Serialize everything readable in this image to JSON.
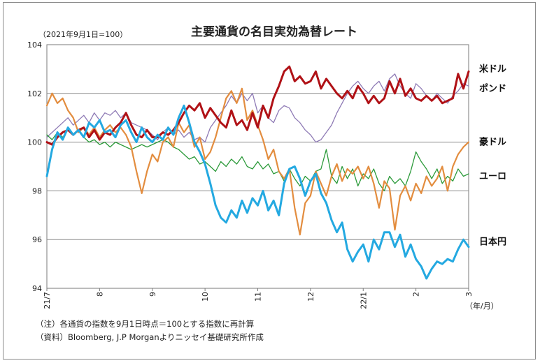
{
  "chart_data": {
    "type": "line",
    "title": "主要通貨の名目実効為替レート",
    "base_note": "（2021年9月1日=100）",
    "x_unit_label": "（年/月）",
    "x_ticks": [
      "21/7",
      "8",
      "9",
      "10",
      "11",
      "12",
      "22/1",
      "2",
      "3"
    ],
    "ylim": [
      94,
      104
    ],
    "y_ticks": [
      94,
      96,
      98,
      100,
      102,
      104
    ],
    "grid": true,
    "legend": "right-side inline labels",
    "series": [
      {
        "name": "米ドル",
        "color": "#b01116",
        "width": 3,
        "x": [
          0,
          0.1,
          0.2,
          0.3,
          0.4,
          0.5,
          0.6,
          0.7,
          0.8,
          0.9,
          1,
          1.1,
          1.2,
          1.3,
          1.4,
          1.5,
          1.6,
          1.7,
          1.8,
          1.9,
          2,
          2.1,
          2.2,
          2.3,
          2.4,
          2.5,
          2.6,
          2.7,
          2.8,
          2.9,
          3,
          3.1,
          3.2,
          3.3,
          3.4,
          3.5,
          3.6,
          3.7,
          3.8,
          3.9,
          4,
          4.1,
          4.2,
          4.3,
          4.4,
          4.5,
          4.6,
          4.7,
          4.8,
          4.9,
          5,
          5.1,
          5.2,
          5.3,
          5.4,
          5.5,
          5.6,
          5.7,
          5.8,
          5.9,
          6,
          6.1,
          6.2,
          6.3,
          6.4,
          6.5,
          6.6,
          6.7,
          6.8,
          6.9,
          7,
          7.1,
          7.2,
          7.3,
          7.4,
          7.5,
          7.6,
          7.7,
          7.8,
          7.9,
          8
        ],
        "values": [
          100,
          99.9,
          100.2,
          100.4,
          100.5,
          100.3,
          100.5,
          100.6,
          100.2,
          100.5,
          100.1,
          100.4,
          100.3,
          100.6,
          100.8,
          101.2,
          100.7,
          100.3,
          100.2,
          100.5,
          100.2,
          100.2,
          100.4,
          100.3,
          100.5,
          100.8,
          101.2,
          101.5,
          101.3,
          101.6,
          101.0,
          101.4,
          101.1,
          100.8,
          100.6,
          101.3,
          100.7,
          100.9,
          100.5,
          101.2,
          100.6,
          101.5,
          101.0,
          101.8,
          102.3,
          102.9,
          103.1,
          102.5,
          102.7,
          102.4,
          102.5,
          102.9,
          102.2,
          102.6,
          102.3,
          102.0,
          101.8,
          102.1,
          101.8,
          102.3,
          102.0,
          101.6,
          101.9,
          101.6,
          101.8,
          102.5,
          102.0,
          102.6,
          101.9,
          102.2,
          101.8,
          101.7,
          101.9,
          101.7,
          101.9,
          101.6,
          101.7,
          101.8,
          102.8,
          102.2,
          102.9
        ]
      },
      {
        "name": "ポンド",
        "color": "#8e7ab5",
        "width": 1.3,
        "x": [
          0,
          0.1,
          0.2,
          0.3,
          0.4,
          0.5,
          0.6,
          0.7,
          0.8,
          0.9,
          1,
          1.1,
          1.2,
          1.3,
          1.4,
          1.5,
          1.6,
          1.7,
          1.8,
          1.9,
          2,
          2.1,
          2.2,
          2.3,
          2.4,
          2.5,
          2.6,
          2.7,
          2.8,
          2.9,
          3,
          3.1,
          3.2,
          3.3,
          3.4,
          3.5,
          3.6,
          3.7,
          3.8,
          3.9,
          4,
          4.1,
          4.2,
          4.3,
          4.4,
          4.5,
          4.6,
          4.7,
          4.8,
          4.9,
          5,
          5.1,
          5.2,
          5.3,
          5.4,
          5.5,
          5.6,
          5.7,
          5.8,
          5.9,
          6,
          6.1,
          6.2,
          6.3,
          6.4,
          6.5,
          6.6,
          6.7,
          6.8,
          6.9,
          7,
          7.1,
          7.2,
          7.3,
          7.4,
          7.5,
          7.6,
          7.7,
          7.8,
          7.9,
          8
        ],
        "values": [
          100.2,
          100.4,
          100.6,
          100.8,
          101.0,
          100.7,
          100.9,
          101.1,
          100.8,
          101.2,
          100.9,
          101.2,
          101.1,
          101.3,
          101.0,
          101.2,
          100.8,
          100.7,
          100.6,
          100.5,
          100.3,
          100.1,
          100.4,
          100.6,
          100.3,
          100.5,
          100.2,
          100.4,
          100.1,
          100.2,
          100.0,
          100.6,
          100.9,
          101.2,
          101.5,
          101.9,
          101.6,
          102.0,
          101.7,
          102.0,
          101.2,
          101.5,
          101.0,
          100.8,
          101.3,
          101.5,
          101.4,
          101.0,
          100.8,
          100.5,
          100.3,
          100.0,
          100.1,
          100.4,
          100.7,
          101.2,
          101.6,
          102.0,
          102.3,
          102.5,
          102.2,
          102.0,
          102.3,
          102.5,
          102.1,
          102.6,
          102.8,
          102.3,
          102.0,
          101.8,
          102.4,
          102.2,
          101.9,
          101.7,
          102.0,
          101.8,
          101.6,
          101.9,
          102.1,
          102.4,
          102.3
        ]
      },
      {
        "name": "豪ドル",
        "color": "#e38d3f",
        "width": 2.2,
        "x": [
          0,
          0.1,
          0.2,
          0.3,
          0.4,
          0.5,
          0.6,
          0.7,
          0.8,
          0.9,
          1,
          1.1,
          1.2,
          1.3,
          1.4,
          1.5,
          1.6,
          1.7,
          1.8,
          1.9,
          2,
          2.1,
          2.2,
          2.3,
          2.4,
          2.5,
          2.6,
          2.7,
          2.8,
          2.9,
          3,
          3.1,
          3.2,
          3.3,
          3.4,
          3.5,
          3.6,
          3.7,
          3.8,
          3.9,
          4,
          4.1,
          4.2,
          4.3,
          4.4,
          4.5,
          4.6,
          4.7,
          4.8,
          4.9,
          5,
          5.1,
          5.2,
          5.3,
          5.4,
          5.5,
          5.6,
          5.7,
          5.8,
          5.9,
          6,
          6.1,
          6.2,
          6.3,
          6.4,
          6.5,
          6.6,
          6.7,
          6.8,
          6.9,
          7,
          7.1,
          7.2,
          7.3,
          7.4,
          7.5,
          7.6,
          7.7,
          7.8,
          7.9,
          8
        ],
        "values": [
          101.5,
          102.0,
          101.6,
          101.8,
          101.3,
          101.0,
          100.4,
          100.6,
          100.3,
          100.6,
          100.2,
          100.5,
          100.7,
          100.4,
          100.6,
          100.3,
          99.8,
          98.8,
          97.9,
          98.8,
          99.5,
          99.2,
          100.0,
          100.2,
          99.8,
          100.8,
          100.4,
          100.7,
          99.8,
          100.2,
          99.3,
          99.6,
          100.2,
          101.0,
          101.8,
          102.1,
          101.6,
          102.2,
          100.9,
          101.3,
          100.7,
          100.1,
          99.3,
          99.7,
          98.8,
          98.5,
          98.9,
          97.3,
          96.2,
          97.5,
          97.8,
          98.8,
          98.3,
          97.8,
          98.6,
          99.1,
          98.4,
          98.9,
          98.7,
          99.0,
          98.5,
          99.0,
          98.3,
          97.3,
          98.4,
          98.1,
          96.4,
          97.8,
          98.2,
          97.6,
          98.3,
          97.9,
          98.6,
          98.2,
          98.5,
          99.0,
          98.0,
          99.0,
          99.5,
          99.8,
          100.0
        ]
      },
      {
        "name": "ユーロ",
        "color": "#2c9a3a",
        "width": 1.3,
        "x": [
          0,
          0.1,
          0.2,
          0.3,
          0.4,
          0.5,
          0.6,
          0.7,
          0.8,
          0.9,
          1,
          1.1,
          1.2,
          1.3,
          1.4,
          1.5,
          1.6,
          1.7,
          1.8,
          1.9,
          2,
          2.1,
          2.2,
          2.3,
          2.4,
          2.5,
          2.6,
          2.7,
          2.8,
          2.9,
          3,
          3.1,
          3.2,
          3.3,
          3.4,
          3.5,
          3.6,
          3.7,
          3.8,
          3.9,
          4,
          4.1,
          4.2,
          4.3,
          4.4,
          4.5,
          4.6,
          4.7,
          4.8,
          4.9,
          5,
          5.1,
          5.2,
          5.3,
          5.4,
          5.5,
          5.6,
          5.7,
          5.8,
          5.9,
          6,
          6.1,
          6.2,
          6.3,
          6.4,
          6.5,
          6.6,
          6.7,
          6.8,
          6.9,
          7,
          7.1,
          7.2,
          7.3,
          7.4,
          7.5,
          7.6,
          7.7,
          7.8,
          7.9,
          8
        ],
        "values": [
          100.3,
          100.1,
          100.4,
          100.2,
          100.5,
          100.3,
          100.5,
          100.2,
          100.0,
          100.1,
          99.9,
          100.0,
          99.8,
          100.0,
          99.9,
          99.8,
          99.7,
          99.8,
          99.9,
          99.8,
          99.9,
          100.0,
          100.1,
          100.0,
          99.8,
          99.7,
          99.5,
          99.3,
          99.4,
          99.1,
          99.2,
          99.0,
          98.8,
          99.2,
          99.0,
          99.3,
          99.1,
          99.4,
          99.0,
          98.9,
          99.2,
          98.9,
          99.1,
          98.7,
          98.8,
          98.4,
          98.9,
          98.5,
          98.2,
          98.6,
          98.4,
          98.8,
          98.9,
          99.7,
          98.6,
          98.3,
          99.0,
          98.5,
          98.9,
          98.2,
          98.7,
          98.5,
          98.9,
          98.3,
          98.0,
          98.6,
          98.3,
          98.5,
          98.2,
          98.8,
          99.6,
          99.2,
          98.9,
          98.5,
          98.9,
          98.3,
          98.6,
          98.4,
          98.9,
          98.6,
          98.7
        ]
      },
      {
        "name": "日本円",
        "color": "#24a9e1",
        "width": 3,
        "x": [
          0,
          0.1,
          0.2,
          0.3,
          0.4,
          0.5,
          0.6,
          0.7,
          0.8,
          0.9,
          1,
          1.1,
          1.2,
          1.3,
          1.4,
          1.5,
          1.6,
          1.7,
          1.8,
          1.9,
          2,
          2.1,
          2.2,
          2.3,
          2.4,
          2.5,
          2.6,
          2.7,
          2.8,
          2.9,
          3,
          3.1,
          3.2,
          3.3,
          3.4,
          3.5,
          3.6,
          3.7,
          3.8,
          3.9,
          4,
          4.1,
          4.2,
          4.3,
          4.4,
          4.5,
          4.6,
          4.7,
          4.8,
          4.9,
          5,
          5.1,
          5.2,
          5.3,
          5.4,
          5.5,
          5.6,
          5.7,
          5.8,
          5.9,
          6,
          6.1,
          6.2,
          6.3,
          6.4,
          6.5,
          6.6,
          6.7,
          6.8,
          6.9,
          7,
          7.1,
          7.2,
          7.3,
          7.4,
          7.5,
          7.6,
          7.7,
          7.8,
          7.9,
          8
        ],
        "values": [
          98.6,
          99.7,
          100.4,
          100.1,
          100.6,
          100.3,
          100.5,
          100.2,
          100.8,
          100.6,
          100.9,
          100.4,
          100.5,
          100.2,
          100.7,
          100.9,
          100.4,
          100.0,
          100.6,
          100.2,
          100.0,
          100.3,
          100.1,
          100.6,
          100.3,
          101.0,
          101.5,
          100.8,
          100.0,
          99.6,
          99.1,
          98.3,
          97.4,
          96.9,
          96.7,
          97.2,
          96.9,
          97.6,
          97.1,
          97.7,
          97.4,
          98.0,
          97.2,
          97.6,
          97.0,
          98.3,
          98.9,
          99.0,
          98.5,
          97.8,
          98.4,
          98.7,
          97.9,
          97.5,
          96.8,
          96.3,
          96.7,
          95.6,
          95.1,
          95.5,
          95.8,
          95.1,
          96.0,
          95.6,
          96.3,
          96.3,
          95.7,
          96.2,
          95.3,
          95.8,
          95.2,
          94.9,
          94.4,
          94.8,
          95.1,
          95.0,
          95.2,
          95.1,
          95.6,
          96.0,
          95.7
        ]
      }
    ],
    "notes": [
      "（注）各通貨の指数を9月1日時点＝100とする指数に再計算",
      "（資料）Bloomberg, J.P Morganよりニッセイ基礎研究所作成"
    ]
  }
}
